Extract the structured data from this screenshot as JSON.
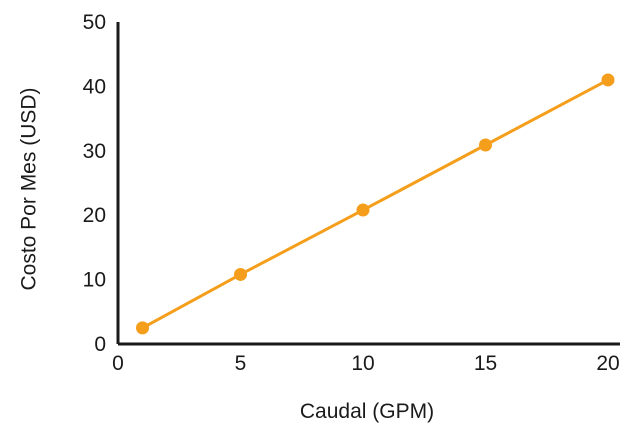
{
  "chart_data": {
    "type": "line",
    "title": "",
    "xlabel": "Caudal (GPM)",
    "ylabel": "Costo Por Mes (USD)",
    "xlim": [
      0,
      20
    ],
    "ylim": [
      0,
      50
    ],
    "xticks": [
      0,
      5,
      10,
      15,
      20
    ],
    "yticks": [
      0,
      10,
      20,
      30,
      40,
      50
    ],
    "xtick_labels": [
      "0",
      "5",
      "10",
      "15",
      "20"
    ],
    "ytick_labels": [
      "0",
      "10",
      "20",
      "30",
      "40",
      "50"
    ],
    "grid": false,
    "legend": "none",
    "series": [
      {
        "x": [
          1,
          5,
          10,
          15,
          20
        ],
        "y": [
          2.5,
          10.8,
          20.8,
          30.9,
          41.0
        ],
        "color": "#f59e1b"
      }
    ]
  }
}
